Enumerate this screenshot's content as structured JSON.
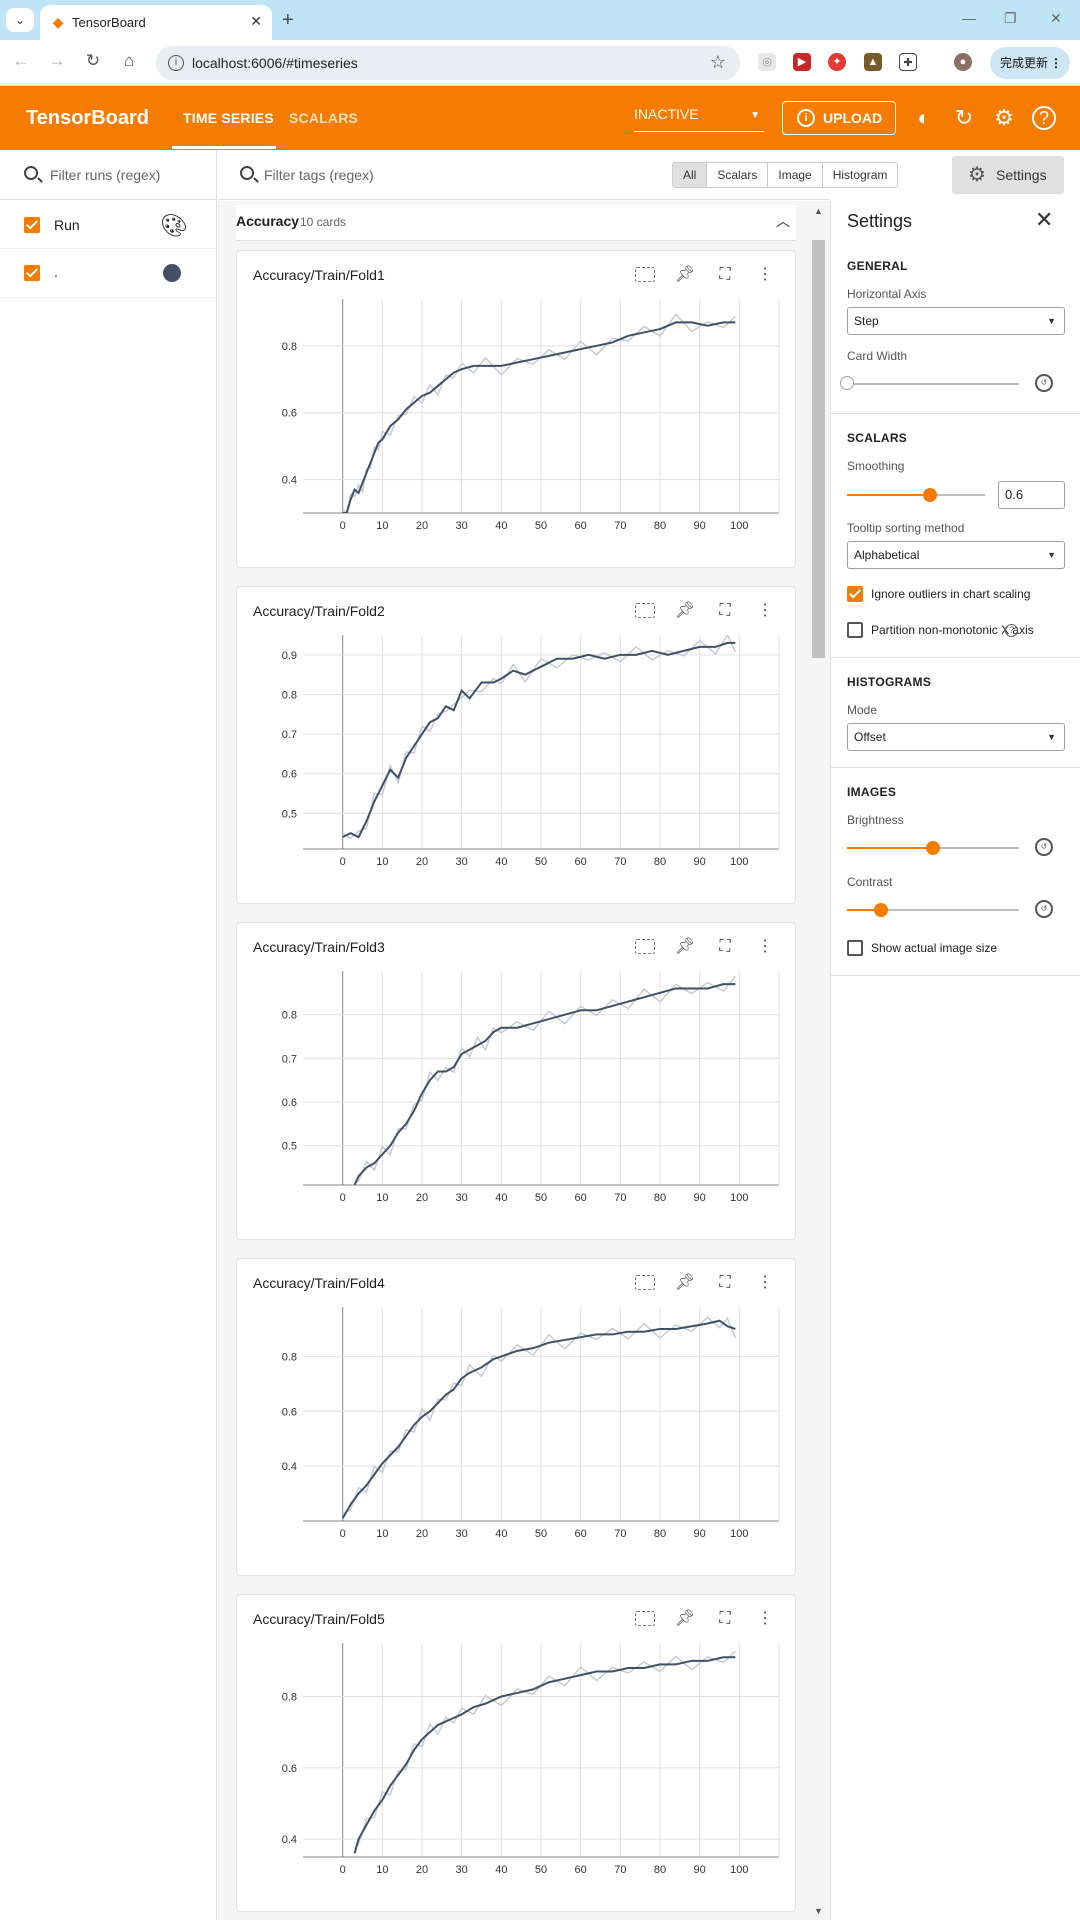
{
  "browser": {
    "tab_title": "TensorBoard",
    "url": "localhost:6006/#timeseries",
    "update_label": "完成更新"
  },
  "header": {
    "brand": "TensorBoard",
    "tabs": [
      "TIME SERIES",
      "SCALARS"
    ],
    "active_tab": "TIME SERIES",
    "plugin_select": "INACTIVE",
    "upload_label": "UPLOAD"
  },
  "runs": {
    "filter_placeholder": "Filter runs (regex)",
    "items": [
      {
        "label": "Run",
        "checked": true,
        "icon": "palette-icon"
      },
      {
        "label": ".",
        "checked": true,
        "color": "#425066"
      }
    ]
  },
  "filterbar": {
    "tag_placeholder": "Filter tags (regex)",
    "types": [
      "All",
      "Scalars",
      "Image",
      "Histogram"
    ],
    "active_type": "All",
    "settings_label": "Settings"
  },
  "group": {
    "title": "Accuracy",
    "count": "10 cards"
  },
  "colors": {
    "accent": "#f57c00",
    "line_smoothed": "#425066",
    "line_raw": "#c5cbd6"
  },
  "chart_data": [
    {
      "type": "line",
      "title": "Accuracy/Train/Fold1",
      "xticks": [
        "0",
        "10",
        "20",
        "30",
        "40",
        "50",
        "60",
        "70",
        "80",
        "90",
        "100"
      ],
      "yticks": [
        "0.4",
        "0.6",
        "0.8"
      ],
      "ylim": [
        0.3,
        0.94
      ],
      "series": [
        {
          "x": [
            0,
            1,
            2,
            3,
            4,
            5,
            6,
            7,
            8,
            9,
            10,
            12,
            14,
            16,
            18,
            20,
            22,
            24,
            26,
            28,
            30,
            33,
            36,
            40,
            44,
            48,
            52,
            56,
            60,
            64,
            68,
            72,
            76,
            80,
            84,
            88,
            92,
            96,
            99
          ],
          "y": [
            0.3,
            0.3,
            0.34,
            0.37,
            0.36,
            0.39,
            0.42,
            0.45,
            0.48,
            0.51,
            0.52,
            0.56,
            0.58,
            0.61,
            0.63,
            0.65,
            0.66,
            0.68,
            0.7,
            0.72,
            0.73,
            0.74,
            0.74,
            0.74,
            0.75,
            0.76,
            0.77,
            0.78,
            0.79,
            0.8,
            0.81,
            0.83,
            0.84,
            0.85,
            0.87,
            0.87,
            0.86,
            0.87,
            0.87
          ]
        }
      ]
    },
    {
      "type": "line",
      "title": "Accuracy/Train/Fold2",
      "xticks": [
        "0",
        "10",
        "20",
        "30",
        "40",
        "50",
        "60",
        "70",
        "80",
        "90",
        "100"
      ],
      "yticks": [
        "0.5",
        "0.6",
        "0.7",
        "0.8",
        "0.9"
      ],
      "ylim": [
        0.41,
        0.95
      ],
      "series": [
        {
          "x": [
            0,
            2,
            4,
            6,
            8,
            10,
            12,
            14,
            16,
            18,
            20,
            22,
            24,
            26,
            28,
            30,
            32,
            35,
            38,
            40,
            43,
            46,
            50,
            54,
            58,
            62,
            66,
            70,
            74,
            78,
            82,
            86,
            90,
            94,
            97,
            99
          ],
          "y": [
            0.44,
            0.45,
            0.44,
            0.48,
            0.53,
            0.57,
            0.61,
            0.59,
            0.64,
            0.67,
            0.7,
            0.73,
            0.74,
            0.77,
            0.76,
            0.81,
            0.79,
            0.83,
            0.83,
            0.84,
            0.86,
            0.85,
            0.87,
            0.89,
            0.89,
            0.9,
            0.89,
            0.9,
            0.9,
            0.91,
            0.9,
            0.91,
            0.92,
            0.92,
            0.93,
            0.93
          ]
        }
      ]
    },
    {
      "type": "line",
      "title": "Accuracy/Train/Fold3",
      "xticks": [
        "0",
        "10",
        "20",
        "30",
        "40",
        "50",
        "60",
        "70",
        "80",
        "90",
        "100"
      ],
      "yticks": [
        "0.5",
        "0.6",
        "0.7",
        "0.8"
      ],
      "ylim": [
        0.41,
        0.9
      ],
      "series": [
        {
          "x": [
            3,
            4,
            6,
            8,
            10,
            12,
            14,
            16,
            18,
            20,
            22,
            24,
            26,
            28,
            30,
            32,
            34,
            36,
            38,
            40,
            44,
            48,
            52,
            56,
            60,
            64,
            68,
            72,
            76,
            80,
            84,
            88,
            92,
            96,
            99
          ],
          "y": [
            0.41,
            0.43,
            0.45,
            0.46,
            0.48,
            0.5,
            0.53,
            0.55,
            0.58,
            0.62,
            0.65,
            0.67,
            0.67,
            0.68,
            0.71,
            0.72,
            0.73,
            0.74,
            0.76,
            0.77,
            0.77,
            0.78,
            0.79,
            0.8,
            0.81,
            0.81,
            0.82,
            0.83,
            0.84,
            0.85,
            0.86,
            0.86,
            0.86,
            0.87,
            0.87
          ]
        }
      ]
    },
    {
      "type": "line",
      "title": "Accuracy/Train/Fold4",
      "xticks": [
        "0",
        "10",
        "20",
        "30",
        "40",
        "50",
        "60",
        "70",
        "80",
        "90",
        "100"
      ],
      "yticks": [
        "0.4",
        "0.6",
        "0.8"
      ],
      "ylim": [
        0.2,
        0.98
      ],
      "series": [
        {
          "x": [
            0,
            2,
            4,
            6,
            8,
            10,
            12,
            14,
            16,
            18,
            20,
            22,
            24,
            26,
            28,
            30,
            32,
            35,
            38,
            40,
            44,
            48,
            52,
            56,
            60,
            64,
            68,
            72,
            76,
            80,
            84,
            88,
            92,
            95,
            97,
            99
          ],
          "y": [
            0.21,
            0.26,
            0.3,
            0.33,
            0.37,
            0.41,
            0.44,
            0.47,
            0.51,
            0.55,
            0.58,
            0.6,
            0.63,
            0.66,
            0.68,
            0.72,
            0.74,
            0.76,
            0.79,
            0.8,
            0.82,
            0.83,
            0.85,
            0.86,
            0.87,
            0.88,
            0.88,
            0.89,
            0.89,
            0.9,
            0.9,
            0.91,
            0.92,
            0.93,
            0.91,
            0.9
          ]
        }
      ]
    },
    {
      "type": "line",
      "title": "Accuracy/Train/Fold5",
      "xticks": [
        "0",
        "10",
        "20",
        "30",
        "40",
        "50",
        "60",
        "70",
        "80",
        "90",
        "100"
      ],
      "yticks": [
        "0.4",
        "0.6",
        "0.8"
      ],
      "ylim": [
        0.35,
        0.95
      ],
      "series": [
        {
          "x": [
            3,
            4,
            6,
            8,
            10,
            12,
            14,
            16,
            18,
            20,
            22,
            24,
            26,
            28,
            30,
            33,
            36,
            40,
            44,
            48,
            52,
            56,
            60,
            64,
            68,
            72,
            76,
            80,
            84,
            88,
            92,
            96,
            99
          ],
          "y": [
            0.36,
            0.4,
            0.44,
            0.48,
            0.51,
            0.55,
            0.58,
            0.61,
            0.65,
            0.68,
            0.7,
            0.72,
            0.73,
            0.74,
            0.75,
            0.77,
            0.78,
            0.8,
            0.81,
            0.82,
            0.84,
            0.85,
            0.86,
            0.87,
            0.87,
            0.88,
            0.88,
            0.89,
            0.89,
            0.9,
            0.9,
            0.91,
            0.91
          ]
        }
      ]
    }
  ],
  "settings": {
    "title": "Settings",
    "general": {
      "heading": "GENERAL",
      "horizontal_axis_label": "Horizontal Axis",
      "horizontal_axis_value": "Step",
      "card_width_label": "Card Width",
      "card_width_level": 0
    },
    "scalars": {
      "heading": "SCALARS",
      "smoothing_label": "Smoothing",
      "smoothing_value": "0.6",
      "tooltip_label": "Tooltip sorting method",
      "tooltip_value": "Alphabetical",
      "ignore_outliers_label": "Ignore outliers in chart scaling",
      "ignore_outliers_checked": true,
      "partition_label": "Partition non-monotonic X axis",
      "partition_checked": false
    },
    "histograms": {
      "heading": "HISTOGRAMS",
      "mode_label": "Mode",
      "mode_value": "Offset"
    },
    "images": {
      "heading": "IMAGES",
      "brightness_label": "Brightness",
      "brightness_level": 0.5,
      "contrast_label": "Contrast",
      "contrast_level": 0.2,
      "actual_size_label": "Show actual image size",
      "actual_size_checked": false
    }
  }
}
